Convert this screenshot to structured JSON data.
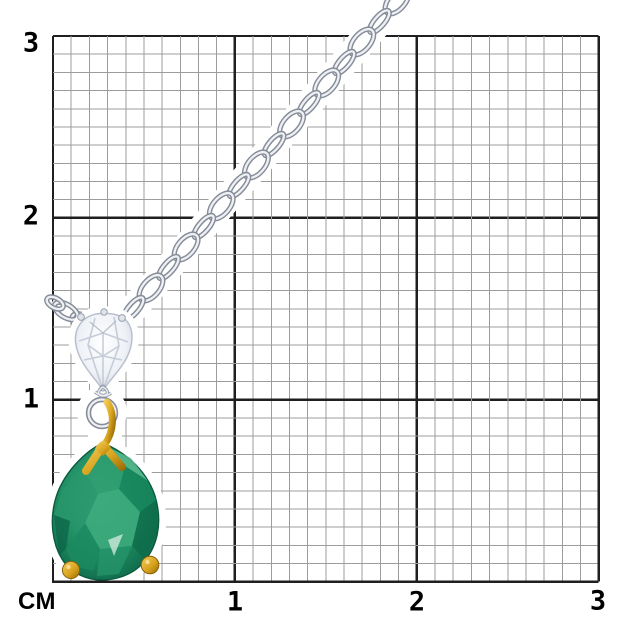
{
  "ruler": {
    "unit_label": "СМ",
    "left_tick_labels": [
      "3",
      "2",
      "1"
    ],
    "bottom_tick_labels": [
      "1",
      "2",
      "3"
    ],
    "span_cm": 3,
    "minor_divisions_per_cm": 10,
    "colors": {
      "background": "#ffffff",
      "major_line": "#1f1f1f",
      "minor_line": "#9c9c9c",
      "label": "#000000"
    }
  },
  "jewelry": {
    "name": "emerald-and-diamond-pendant-on-cable-chain",
    "colors": {
      "emerald_main": "#1f8f63",
      "emerald_dark": "#0c6347",
      "emerald_light": "#7ccfa8",
      "gold": "#d9a51f",
      "gold_dark": "#8a5f08",
      "silver_light": "#eef0f4",
      "silver_dark": "#868d99",
      "diamond_fill": "#eef1f6",
      "diamond_facet": "#b9c0cc"
    }
  }
}
